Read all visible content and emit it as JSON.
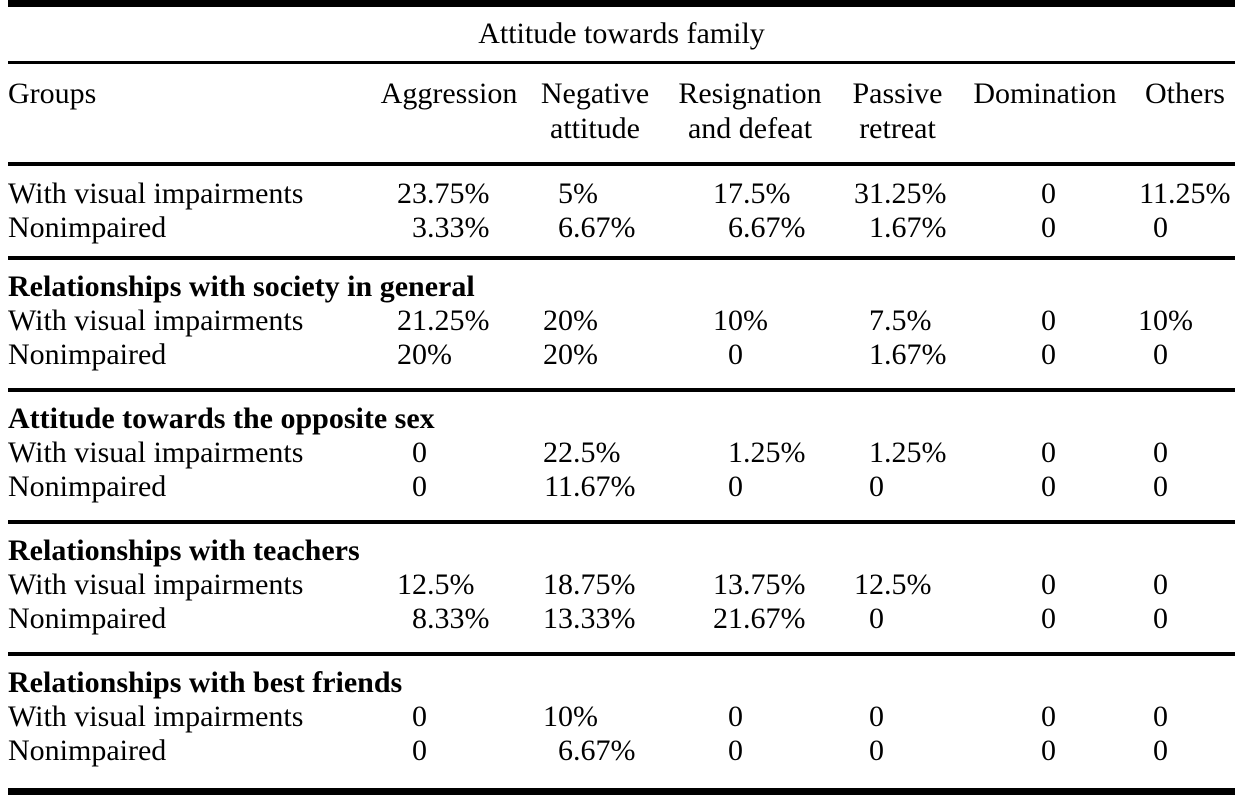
{
  "table": {
    "title": "Attitude towards family",
    "columns": [
      "Groups",
      "Aggression",
      "Negative attitude",
      "Resignation and defeat",
      "Passive retreat",
      "Domination",
      "Others"
    ],
    "sections": [
      {
        "header": "",
        "rows": [
          {
            "label": "With visual impairments",
            "values": [
              "23.75%",
              "5%",
              "17.5%",
              "31.25%",
              "0",
              "11.25%"
            ]
          },
          {
            "label": "Nonimpaired",
            "values": [
              "3.33%",
              "6.67%",
              "6.67%",
              "1.67%",
              "0",
              "0"
            ]
          }
        ]
      },
      {
        "header": "Relationships with society in general",
        "rows": [
          {
            "label": "With visual impairments",
            "values": [
              "21.25%",
              "20%",
              "10%",
              "7.5%",
              "0",
              "10%"
            ]
          },
          {
            "label": "Nonimpaired",
            "values": [
              "20%",
              "20%",
              "0",
              "1.67%",
              "0",
              "0"
            ]
          }
        ]
      },
      {
        "header": "Attitude towards the opposite sex",
        "rows": [
          {
            "label": "With visual impairments",
            "values": [
              "0",
              "22.5%",
              "1.25%",
              "1.25%",
              "0",
              "0"
            ]
          },
          {
            "label": "Nonimpaired",
            "values": [
              "0",
              "11.67%",
              "0",
              "0",
              "0",
              "0"
            ]
          }
        ]
      },
      {
        "header": "Relationships with teachers",
        "rows": [
          {
            "label": "With visual impairments",
            "values": [
              "12.5%",
              "18.75%",
              "13.75%",
              "12.5%",
              "0",
              "0"
            ]
          },
          {
            "label": "Nonimpaired",
            "values": [
              "8.33%",
              "13.33%",
              "21.67%",
              "0",
              "0",
              "0"
            ]
          }
        ]
      },
      {
        "header": "Relationships with best friends",
        "rows": [
          {
            "label": "With visual impairments",
            "values": [
              "0",
              "10%",
              "0",
              "0",
              "0",
              "0"
            ]
          },
          {
            "label": "Nonimpaired",
            "values": [
              "0",
              "6.67%",
              "0",
              "0",
              "0",
              "0"
            ]
          }
        ]
      }
    ]
  }
}
